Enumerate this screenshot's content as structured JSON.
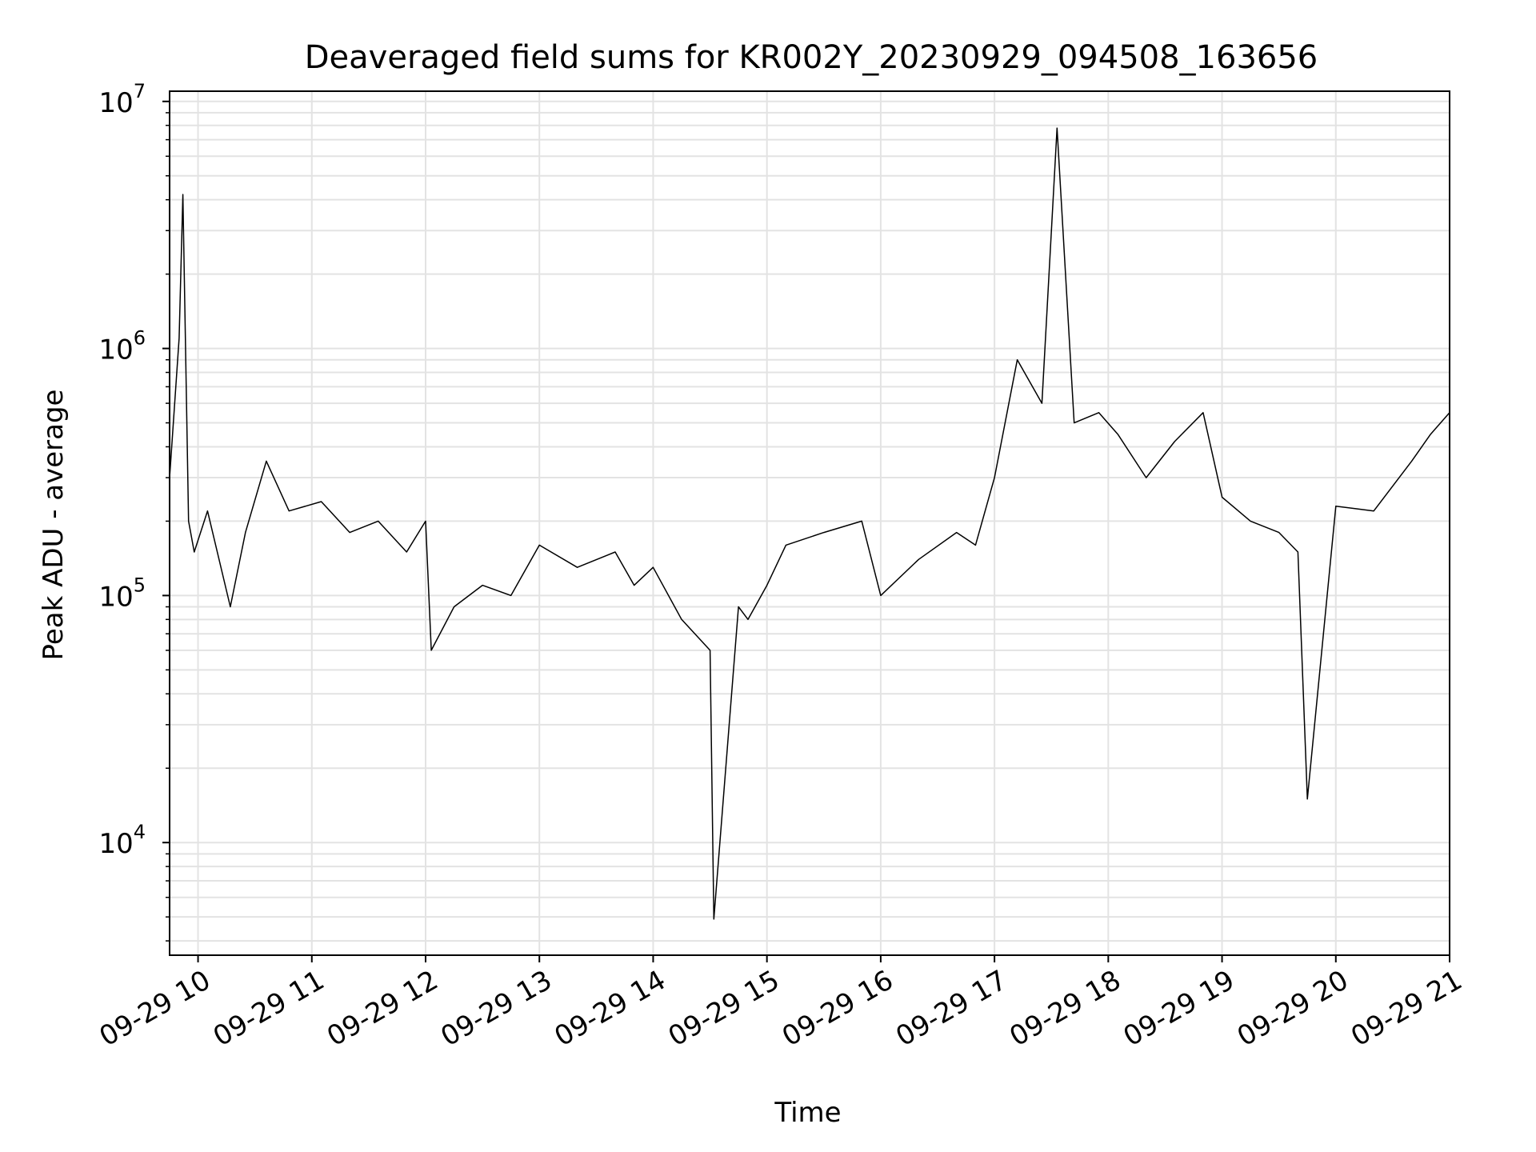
{
  "chart_data": {
    "type": "line",
    "title": "Deaveraged field sums for KR002Y_20230929_094508_163656",
    "xlabel": "Time",
    "ylabel": "Peak ADU - average",
    "yscale": "log",
    "ylim": [
      3500,
      11000000
    ],
    "xlim": [
      "2023-09-29 09:45",
      "2023-09-29 21:00"
    ],
    "grid": true,
    "x_ticks": [
      "2023-09-29 10:00",
      "2023-09-29 11:00",
      "2023-09-29 12:00",
      "2023-09-29 13:00",
      "2023-09-29 14:00",
      "2023-09-29 15:00",
      "2023-09-29 16:00",
      "2023-09-29 17:00",
      "2023-09-29 18:00",
      "2023-09-29 19:00",
      "2023-09-29 20:00",
      "2023-09-29 21:00"
    ],
    "x_tick_labels": [
      "09-29 10",
      "09-29 11",
      "09-29 12",
      "09-29 13",
      "09-29 14",
      "09-29 15",
      "09-29 16",
      "09-29 17",
      "09-29 18",
      "09-29 19",
      "09-29 20",
      "09-29 21"
    ],
    "y_ticks": [
      10000,
      100000,
      1000000,
      10000000
    ],
    "y_tick_labels": [
      {
        "base": "10",
        "exp": "4"
      },
      {
        "base": "10",
        "exp": "5"
      },
      {
        "base": "10",
        "exp": "6"
      },
      {
        "base": "10",
        "exp": "7"
      }
    ],
    "series": [
      {
        "color": "#000000",
        "x": [
          "2023-09-29 09:45",
          "2023-09-29 09:50",
          "2023-09-29 09:52",
          "2023-09-29 09:55",
          "2023-09-29 09:58",
          "2023-09-29 10:05",
          "2023-09-29 10:17",
          "2023-09-29 10:25",
          "2023-09-29 10:36",
          "2023-09-29 10:48",
          "2023-09-29 11:05",
          "2023-09-29 11:20",
          "2023-09-29 11:35",
          "2023-09-29 11:50",
          "2023-09-29 12:00",
          "2023-09-29 12:03",
          "2023-09-29 12:15",
          "2023-09-29 12:30",
          "2023-09-29 12:45",
          "2023-09-29 13:00",
          "2023-09-29 13:20",
          "2023-09-29 13:40",
          "2023-09-29 13:50",
          "2023-09-29 14:00",
          "2023-09-29 14:15",
          "2023-09-29 14:30",
          "2023-09-29 14:32",
          "2023-09-29 14:45",
          "2023-09-29 14:50",
          "2023-09-29 15:00",
          "2023-09-29 15:10",
          "2023-09-29 15:30",
          "2023-09-29 15:50",
          "2023-09-29 16:00",
          "2023-09-29 16:20",
          "2023-09-29 16:40",
          "2023-09-29 16:50",
          "2023-09-29 17:00",
          "2023-09-29 17:12",
          "2023-09-29 17:25",
          "2023-09-29 17:33",
          "2023-09-29 17:42",
          "2023-09-29 17:55",
          "2023-09-29 18:05",
          "2023-09-29 18:20",
          "2023-09-29 18:35",
          "2023-09-29 18:50",
          "2023-09-29 19:00",
          "2023-09-29 19:15",
          "2023-09-29 19:30",
          "2023-09-29 19:40",
          "2023-09-29 19:45",
          "2023-09-29 20:00",
          "2023-09-29 20:20",
          "2023-09-29 20:40",
          "2023-09-29 20:50",
          "2023-09-29 21:00"
        ],
        "values": [
          300000,
          1100000,
          4200000,
          200000,
          150000,
          220000,
          90000,
          180000,
          350000,
          220000,
          240000,
          180000,
          200000,
          150000,
          200000,
          60000,
          90000,
          110000,
          100000,
          160000,
          130000,
          150000,
          110000,
          130000,
          80000,
          60000,
          4900,
          90000,
          80000,
          110000,
          160000,
          180000,
          200000,
          100000,
          140000,
          180000,
          160000,
          300000,
          900000,
          600000,
          7800000,
          500000,
          550000,
          450000,
          300000,
          420000,
          550000,
          250000,
          200000,
          180000,
          150000,
          15000,
          230000,
          220000,
          350000,
          450000,
          550000
        ]
      }
    ]
  }
}
